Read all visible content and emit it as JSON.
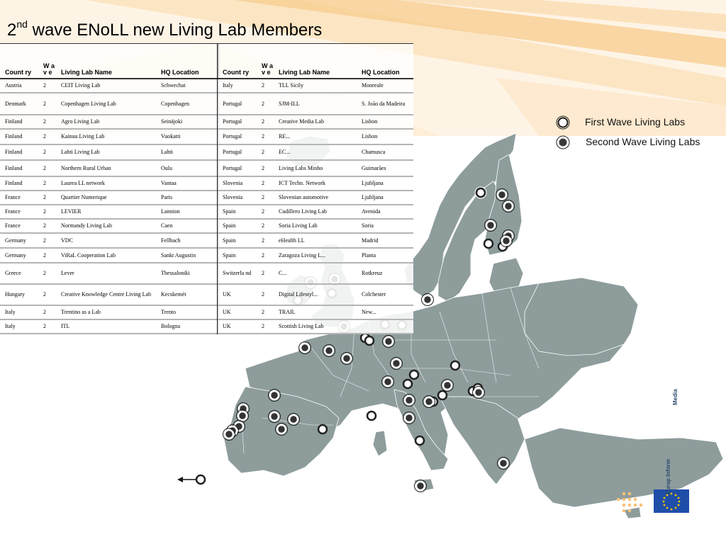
{
  "slide": {
    "title_prefix": "2",
    "title_sup": "nd",
    "title_rest": " wave ENoLL new Living Lab Members",
    "arrow_label": "",
    "media_label": "Media",
    "eu_label": "Europ Inform"
  },
  "table": {
    "headers": {
      "country": "Count ry",
      "wave": "W a v e",
      "name": "Living Lab Name",
      "hq": "HQ Location"
    },
    "left_rows": [
      [
        "Austria",
        "2",
        "CEIT Living Lab",
        "Schwechat"
      ],
      [
        "Denmark",
        "2",
        "Copenhagen Living Lab",
        "Copenhagen"
      ],
      [
        "Finland",
        "2",
        "Agro Living Lab",
        "Seinäjoki"
      ],
      [
        "Finland",
        "2",
        "Kainuu Living Lab",
        "Vuokatti"
      ],
      [
        "Finland",
        "2",
        "Lahti Living Lab",
        "Lahti"
      ],
      [
        "Finland",
        "2",
        "Northern Rural Urban",
        "Oulu"
      ],
      [
        "Finland",
        "2",
        "Laurea LL network",
        "Vantaa"
      ],
      [
        "France",
        "2",
        "Quartier Numerique",
        "Paris"
      ],
      [
        "France",
        "2",
        "LEVIER",
        "Lannion"
      ],
      [
        "France",
        "2",
        "Normandy Living Lab",
        "Caen"
      ],
      [
        "Germany",
        "2",
        "VDC",
        "Fellbach"
      ],
      [
        "Germany",
        "2",
        "ViRaL Cooperation Lab",
        "Sankt Augustin"
      ],
      [
        "Greece",
        "2",
        "Lever",
        "Thessaloniki"
      ],
      [
        "Hungary",
        "2",
        "Creative Knowledge Centre Living Lab",
        "Kecskemét"
      ],
      [
        "Italy",
        "2",
        "Trentino as a Lab",
        "Trento"
      ],
      [
        "Italy",
        "2",
        "ITL",
        "Bologna"
      ]
    ],
    "right_rows": [
      [
        "Italy",
        "2",
        "TLL Sicily",
        "Monreale"
      ],
      [
        "Portugal",
        "2",
        "SJM-ILL",
        "S. João da Madeira"
      ],
      [
        "Portugal",
        "2",
        "Creative Media Lab",
        "Lisbon"
      ],
      [
        "Portugal",
        "2",
        "RE...",
        "Lisbon"
      ],
      [
        "Portugal",
        "2",
        "EC...",
        "Chamusca"
      ],
      [
        "Portugal",
        "2",
        "Living Labs Minho",
        "Guimarães"
      ],
      [
        "Slovenia",
        "2",
        "ICT Techn. Network",
        "Ljubljana"
      ],
      [
        "Slovenia",
        "2",
        "Slovenian automotive",
        "Ljubljana"
      ],
      [
        "Spain",
        "2",
        "Cudillero Living Lab",
        "Avenida"
      ],
      [
        "Spain",
        "2",
        "Soria Living Lab",
        "Soria"
      ],
      [
        "Spain",
        "2",
        "eHealth LL",
        "Madrid"
      ],
      [
        "Spain",
        "2",
        "Zaragoza Living L...",
        "Planta"
      ],
      [
        "Switzerla nd",
        "2",
        "C...",
        "Rotkreuz"
      ],
      [
        "UK",
        "2",
        "Digital Lifestyl...",
        "Colchester"
      ],
      [
        "UK",
        "2",
        "TRAIL",
        "New..."
      ],
      [
        "UK",
        "2",
        "Scottish Living Lab",
        ""
      ]
    ]
  },
  "legend": {
    "first": "First Wave Living Labs",
    "second": "Second Wave Living Labs"
  },
  "colors": {
    "land": "#8e9c9c",
    "land_border": "#ffffff",
    "first_wave_fill": "#ffffff",
    "second_wave_fill": "#3a3a3a",
    "stripe_light": "#fdecd2",
    "stripe_mid": "#f9d8a6",
    "eu_blue": "#1f4ea8",
    "eu_star": "#f2c500",
    "dots_orange": "#f6c27a"
  }
}
